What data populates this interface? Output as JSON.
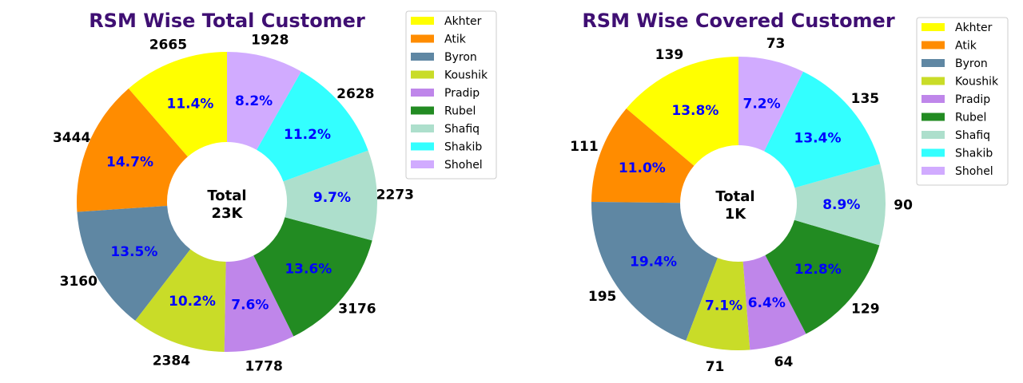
{
  "chart_data": [
    {
      "type": "pie",
      "variant": "donut",
      "title": "RSM Wise Total Customer",
      "center_label": [
        "Total",
        "23K"
      ],
      "categories": [
        "Akhter",
        "Atik",
        "Byron",
        "Koushik",
        "Pradip",
        "Rubel",
        "Shafiq",
        "Shakib",
        "Shohel"
      ],
      "values": [
        2665,
        3444,
        3160,
        2384,
        1778,
        3176,
        2273,
        2628,
        1928
      ],
      "percent_labels": [
        "11.4%",
        "14.7%",
        "13.5%",
        "10.2%",
        "7.6%",
        "13.6%",
        "9.7%",
        "11.2%",
        "8.2%"
      ],
      "legend_placement": "right"
    },
    {
      "type": "pie",
      "variant": "donut",
      "title": "RSM Wise Covered Customer",
      "center_label": [
        "Total",
        "1K"
      ],
      "categories": [
        "Akhter",
        "Atik",
        "Byron",
        "Koushik",
        "Pradip",
        "Rubel",
        "Shafiq",
        "Shakib",
        "Shohel"
      ],
      "values": [
        139,
        111,
        195,
        71,
        64,
        129,
        90,
        135,
        73
      ],
      "percent_labels": [
        "13.8%",
        "11.0%",
        "19.4%",
        "7.1%",
        "6.4%",
        "12.8%",
        "8.9%",
        "13.4%",
        "7.2%"
      ],
      "legend_placement": "top-right"
    }
  ],
  "colors": [
    "#ffff00",
    "#ff8c00",
    "#5f87a3",
    "#c9dc28",
    "#bf86ea",
    "#228b22",
    "#addfcc",
    "#33ffff",
    "#d1abff"
  ]
}
